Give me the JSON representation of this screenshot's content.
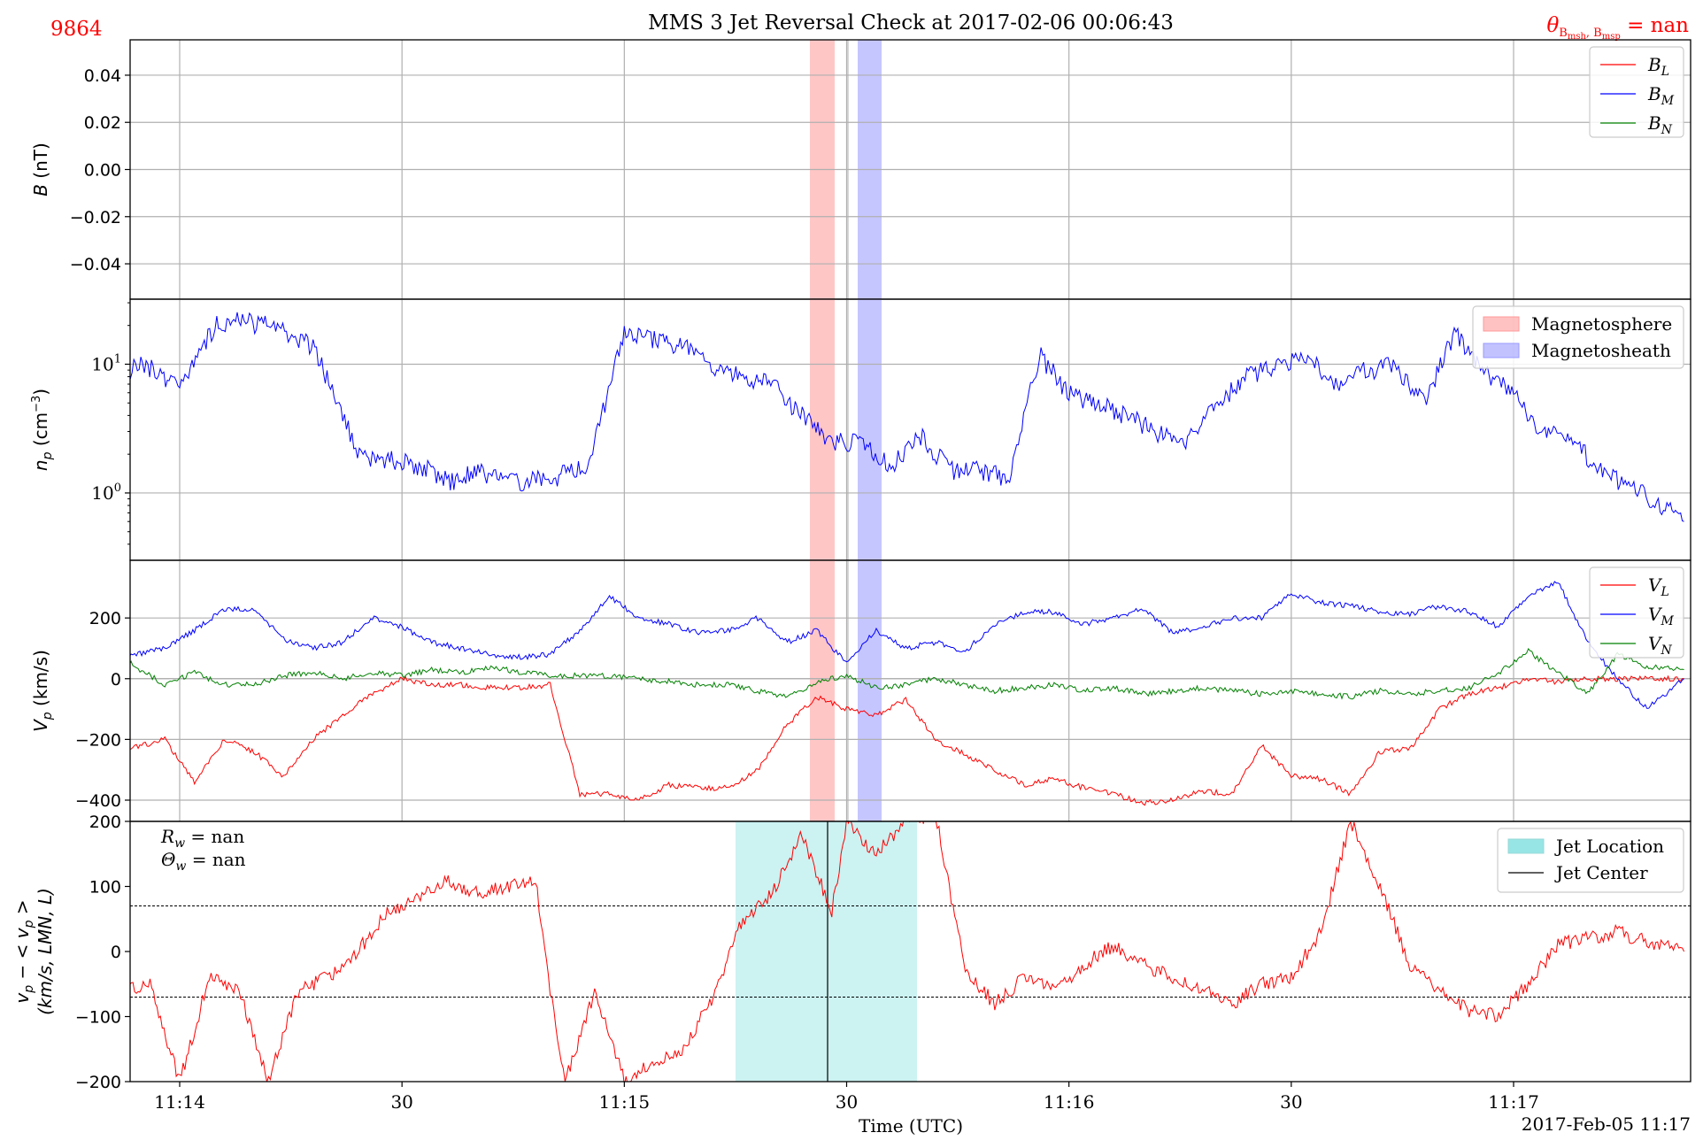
{
  "figure": {
    "title": "MMS 3 Jet Reversal Check at 2017-02-06 00:06:43",
    "corner_left": "9864",
    "corner_right": "θ_{B_msh, B_msp} = nan",
    "xlabel": "Time (UTC)",
    "date_label": "2017-Feb-05 11:17",
    "x_ticks": [
      "11:14",
      "30",
      "11:15",
      "30",
      "11:16",
      "30",
      "11:17"
    ],
    "colors": {
      "red": "#ff0000",
      "blue": "#0000ff",
      "green": "#008000",
      "cyan": "#7fdfdf",
      "grid": "#b0b0b0"
    }
  },
  "chart_data": [
    {
      "type": "line",
      "panel": "B",
      "ylabel": "B (nT)",
      "ylim": [
        -0.055,
        0.055
      ],
      "y_ticks": [
        "0.04",
        "0.02",
        "0.00",
        "−0.02",
        "−0.04"
      ],
      "series": [
        {
          "name": "B_L",
          "color": "#ff0000",
          "values": []
        },
        {
          "name": "B_M",
          "color": "#0000ff",
          "values": []
        },
        {
          "name": "B_N",
          "color": "#008000",
          "values": []
        }
      ],
      "legend": [
        "B_L",
        "B_M",
        "B_N"
      ],
      "grid": true,
      "legend_position": "upper right"
    },
    {
      "type": "line",
      "panel": "n_p",
      "ylabel": "n_p (cm^-3)",
      "scale": "log",
      "ylim": [
        0.3,
        32
      ],
      "y_ticks": [
        "10^1",
        "10^0"
      ],
      "series": [
        {
          "name": "n_p",
          "color": "#0000ff",
          "x": [
            "11:13:47",
            "11:13:50",
            "11:13:55",
            "11:14:00",
            "11:14:05",
            "11:14:08",
            "11:14:12",
            "11:14:18",
            "11:14:22",
            "11:14:24",
            "11:14:26",
            "11:14:30",
            "11:14:33",
            "11:14:37",
            "11:14:40",
            "11:14:45",
            "11:14:50",
            "11:14:55",
            "11:15:00",
            "11:15:05",
            "11:15:08",
            "11:15:12",
            "11:15:16",
            "11:15:20",
            "11:15:24",
            "11:15:28",
            "11:15:32",
            "11:15:36",
            "11:15:40",
            "11:15:44",
            "11:15:48",
            "11:15:52",
            "11:15:56",
            "11:16:00",
            "11:16:04",
            "11:16:08",
            "11:16:12",
            "11:16:16",
            "11:16:20",
            "11:16:24",
            "11:16:28",
            "11:16:32",
            "11:16:36",
            "11:16:40",
            "11:16:44",
            "11:16:48",
            "11:16:52",
            "11:16:56",
            "11:17:00",
            "11:17:04",
            "11:17:08",
            "11:17:12",
            "11:17:16",
            "11:17:20",
            "11:17:23"
          ],
          "values": [
            9,
            8,
            10,
            7,
            21,
            22,
            20,
            14,
            4,
            2.1,
            1.8,
            1.8,
            1.6,
            1.2,
            1.5,
            1.2,
            1.3,
            1.6,
            18,
            15,
            14,
            9,
            8,
            7,
            4,
            2.5,
            2.5,
            1.6,
            2.8,
            1.5,
            1.5,
            1.3,
            12,
            6,
            5,
            4,
            3,
            2.5,
            5,
            8,
            10,
            12,
            7,
            9,
            10,
            5,
            18,
            9,
            6,
            3,
            2.5,
            1.5,
            1.1,
            0.8,
            0.6
          ]
        }
      ],
      "bands": [
        {
          "name": "Magnetosphere",
          "color": "#ffb3b3",
          "x0": "11:15:28",
          "x1": "11:15:29.5"
        },
        {
          "name": "Magnetosheath",
          "color": "#b3b3ff",
          "x0": "11:15:31",
          "x1": "11:15:32.5"
        }
      ],
      "legend": [
        "Magnetosphere",
        "Magnetosheath"
      ],
      "grid": true,
      "legend_position": "upper right"
    },
    {
      "type": "line",
      "panel": "V_p",
      "ylabel": "V_p (km/s)",
      "ylim": [
        -470,
        390
      ],
      "y_ticks": [
        200,
        0,
        -200,
        -400
      ],
      "x": [
        "11:13:47",
        "11:13:52",
        "11:13:58",
        "11:14:02",
        "11:14:06",
        "11:14:10",
        "11:14:14",
        "11:14:18",
        "11:14:22",
        "11:14:26",
        "11:14:30",
        "11:14:34",
        "11:14:38",
        "11:14:42",
        "11:14:46",
        "11:14:50",
        "11:14:54",
        "11:14:58",
        "11:15:02",
        "11:15:06",
        "11:15:10",
        "11:15:14",
        "11:15:18",
        "11:15:22",
        "11:15:26",
        "11:15:30",
        "11:15:34",
        "11:15:38",
        "11:15:42",
        "11:15:46",
        "11:15:50",
        "11:15:54",
        "11:15:58",
        "11:16:02",
        "11:16:06",
        "11:16:10",
        "11:16:14",
        "11:16:18",
        "11:16:22",
        "11:16:26",
        "11:16:30",
        "11:16:34",
        "11:16:38",
        "11:16:42",
        "11:16:46",
        "11:16:50",
        "11:16:54",
        "11:16:58",
        "11:17:02",
        "11:17:06",
        "11:17:10",
        "11:17:14",
        "11:17:18",
        "11:17:23"
      ],
      "series": [
        {
          "name": "V_L",
          "color": "#ff0000",
          "values": [
            -100,
            -240,
            -200,
            -340,
            -200,
            -240,
            -320,
            -200,
            -120,
            -50,
            0,
            -20,
            -20,
            -30,
            -30,
            -20,
            -380,
            -380,
            -400,
            -350,
            -360,
            -360,
            -300,
            -150,
            -60,
            -100,
            -120,
            -70,
            -200,
            -250,
            -300,
            -350,
            -330,
            -360,
            -380,
            -410,
            -400,
            -370,
            -380,
            -220,
            -320,
            -330,
            -380,
            -240,
            -230,
            -100,
            -50,
            -30,
            0,
            -10,
            0,
            0,
            0,
            0
          ]
        },
        {
          "name": "V_M",
          "color": "#0000ff",
          "values": [
            90,
            70,
            100,
            160,
            230,
            230,
            130,
            100,
            120,
            200,
            170,
            120,
            100,
            80,
            70,
            80,
            160,
            270,
            200,
            180,
            150,
            160,
            200,
            120,
            160,
            50,
            160,
            100,
            120,
            90,
            180,
            220,
            220,
            180,
            200,
            230,
            150,
            170,
            200,
            200,
            280,
            250,
            240,
            220,
            210,
            240,
            220,
            170,
            270,
            320,
            120,
            0,
            -100,
            0
          ]
        },
        {
          "name": "V_N",
          "color": "#008000",
          "values": [
            0,
            70,
            -20,
            20,
            -20,
            -20,
            10,
            20,
            0,
            20,
            10,
            30,
            20,
            40,
            20,
            10,
            10,
            10,
            0,
            -10,
            -20,
            -20,
            -40,
            -60,
            -10,
            10,
            -30,
            -20,
            0,
            -20,
            -40,
            -30,
            -20,
            -40,
            -30,
            -50,
            -40,
            -30,
            -40,
            -50,
            -40,
            -50,
            -60,
            -40,
            -50,
            -40,
            -30,
            20,
            90,
            20,
            -50,
            80,
            40,
            30
          ]
        }
      ],
      "bands": [
        {
          "name": "Magnetosphere",
          "color": "#ffb3b3"
        },
        {
          "name": "Magnetosheath",
          "color": "#b3b3ff"
        }
      ],
      "legend": [
        "V_L",
        "V_M",
        "V_N"
      ],
      "grid": true,
      "legend_position": "upper right"
    },
    {
      "type": "line",
      "panel": "dV",
      "ylabel": "v_p − <v_p> (km/s, LMN, L)",
      "ylim": [
        -200,
        200
      ],
      "y_ticks": [
        200,
        100,
        0,
        -100,
        -200
      ],
      "annotations": [
        "R_w = nan",
        "Θ_w = nan"
      ],
      "thresholds": [
        70,
        -70
      ],
      "x": [
        "11:13:47",
        "11:13:50",
        "11:13:53",
        "11:13:56",
        "11:14:00",
        "11:14:04",
        "11:14:08",
        "11:14:12",
        "11:14:16",
        "11:14:20",
        "11:14:24",
        "11:14:28",
        "11:14:32",
        "11:14:36",
        "11:14:40",
        "11:14:44",
        "11:14:48",
        "11:14:50",
        "11:14:52",
        "11:14:56",
        "11:15:00",
        "11:15:04",
        "11:15:08",
        "11:15:12",
        "11:15:16",
        "11:15:20",
        "11:15:24",
        "11:15:28",
        "11:15:30",
        "11:15:34",
        "11:15:38",
        "11:15:42",
        "11:15:46",
        "11:15:50",
        "11:15:54",
        "11:15:58",
        "11:16:02",
        "11:16:06",
        "11:16:10",
        "11:16:14",
        "11:16:18",
        "11:16:22",
        "11:16:26",
        "11:16:30",
        "11:16:34",
        "11:16:38",
        "11:16:42",
        "11:16:46",
        "11:16:50",
        "11:16:54",
        "11:16:58",
        "11:17:02",
        "11:17:06",
        "11:17:10",
        "11:17:14",
        "11:17:18",
        "11:17:23"
      ],
      "series": [
        {
          "name": "v_p − <v_p>",
          "color": "#ff0000",
          "values": [
            100,
            60,
            -60,
            -50,
            -200,
            -40,
            -60,
            -200,
            -60,
            -40,
            0,
            60,
            80,
            110,
            90,
            100,
            110,
            -60,
            -200,
            -60,
            -200,
            -170,
            -150,
            -70,
            50,
            90,
            180,
            60,
            200,
            150,
            200,
            210,
            -30,
            -80,
            -40,
            -60,
            -20,
            10,
            -20,
            -40,
            -60,
            -80,
            -50,
            -40,
            30,
            200,
            100,
            -20,
            -60,
            -90,
            -100,
            -50,
            10,
            20,
            30,
            15,
            0
          ]
        }
      ],
      "jet_location": {
        "x0": "11:15:22",
        "x1": "11:15:35"
      },
      "jet_center": "11:15:28.5",
      "legend": [
        "Jet Location",
        "Jet Center"
      ],
      "grid": false,
      "legend_position": "upper right"
    }
  ]
}
